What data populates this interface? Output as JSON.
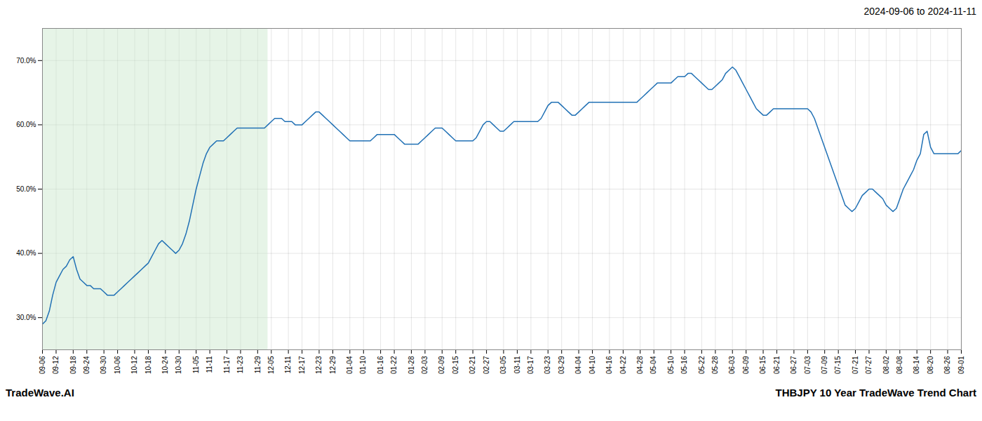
{
  "chart_data": {
    "type": "line",
    "title": "2024-09-06 to 2024-11-11",
    "footer": [
      "TradeWave.AI",
      "THBJPY 10 Year TradeWave Trend Chart"
    ],
    "color": "#2171b5",
    "grid": true,
    "ylim": [
      25.0,
      75.0
    ],
    "yticks": [
      {
        "value": 30.0,
        "label": "30.0%"
      },
      {
        "value": 40.0,
        "label": "40.0%"
      },
      {
        "value": 50.0,
        "label": "50.0%"
      },
      {
        "value": 60.0,
        "label": "60.0%"
      },
      {
        "value": 70.0,
        "label": "70.0%"
      }
    ],
    "spans": [
      {
        "start": 0,
        "end": 66,
        "color": "#c8e6c9"
      }
    ],
    "categories": [
      "09-06",
      null,
      null,
      null,
      "09-12",
      null,
      null,
      null,
      null,
      "09-18",
      null,
      null,
      null,
      "09-24",
      null,
      null,
      null,
      null,
      "09-30",
      null,
      null,
      null,
      "10-06",
      null,
      null,
      null,
      null,
      "10-12",
      null,
      null,
      null,
      "10-18",
      null,
      null,
      null,
      null,
      "10-24",
      null,
      null,
      null,
      "10-30",
      null,
      null,
      null,
      null,
      "11-05",
      null,
      null,
      null,
      "11-11",
      null,
      null,
      null,
      null,
      "11-17",
      null,
      null,
      null,
      "11-23",
      null,
      null,
      null,
      null,
      "11-29",
      null,
      null,
      null,
      "12-05",
      null,
      null,
      null,
      null,
      "12-11",
      null,
      null,
      null,
      "12-17",
      null,
      null,
      null,
      null,
      "12-23",
      null,
      null,
      null,
      "12-29",
      null,
      null,
      null,
      null,
      "01-04",
      null,
      null,
      null,
      "01-10",
      null,
      null,
      null,
      null,
      "01-16",
      null,
      null,
      null,
      "01-22",
      null,
      null,
      null,
      null,
      "01-28",
      null,
      null,
      null,
      "02-03",
      null,
      null,
      null,
      null,
      "02-09",
      null,
      null,
      null,
      "02-15",
      null,
      null,
      null,
      null,
      "02-21",
      null,
      null,
      null,
      "02-27",
      null,
      null,
      null,
      null,
      "03-05",
      null,
      null,
      null,
      "03-11",
      null,
      null,
      null,
      "03-17",
      null,
      null,
      null,
      null,
      "03-23",
      null,
      null,
      null,
      "03-29",
      null,
      null,
      null,
      null,
      "04-04",
      null,
      null,
      null,
      "04-10",
      null,
      null,
      null,
      null,
      "04-16",
      null,
      null,
      null,
      "04-22",
      null,
      null,
      null,
      null,
      "04-28",
      null,
      null,
      null,
      "05-04",
      null,
      null,
      null,
      null,
      "05-10",
      null,
      null,
      null,
      "05-16",
      null,
      null,
      null,
      null,
      "05-22",
      null,
      null,
      null,
      "05-28",
      null,
      null,
      null,
      null,
      "06-03",
      null,
      null,
      null,
      "06-09",
      null,
      null,
      null,
      null,
      "06-15",
      null,
      null,
      null,
      "06-21",
      null,
      null,
      null,
      null,
      "06-27",
      null,
      null,
      null,
      "07-03",
      null,
      null,
      null,
      null,
      "07-09",
      null,
      null,
      null,
      "07-15",
      null,
      null,
      null,
      null,
      "07-21",
      null,
      null,
      null,
      "07-27",
      null,
      null,
      null,
      null,
      "08-02",
      null,
      null,
      null,
      "08-08",
      null,
      null,
      null,
      null,
      "08-14",
      null,
      null,
      null,
      "08-20",
      null,
      null,
      null,
      null,
      "08-26",
      null,
      null,
      null,
      "09-01"
    ],
    "values": [
      29.0,
      29.5,
      31.0,
      33.5,
      35.5,
      36.5,
      37.5,
      38.0,
      39.0,
      39.5,
      37.5,
      36.0,
      35.5,
      35.0,
      35.0,
      34.5,
      34.5,
      34.5,
      34.0,
      33.5,
      33.5,
      33.5,
      34.0,
      34.5,
      35.0,
      35.5,
      36.0,
      36.5,
      37.0,
      37.5,
      38.0,
      38.5,
      39.5,
      40.5,
      41.5,
      42.0,
      41.5,
      41.0,
      40.5,
      40.0,
      40.5,
      41.5,
      43.0,
      45.0,
      47.5,
      50.0,
      52.0,
      54.0,
      55.5,
      56.5,
      57.0,
      57.5,
      57.5,
      57.5,
      58.0,
      58.5,
      59.0,
      59.5,
      59.5,
      59.5,
      59.5,
      59.5,
      59.5,
      59.5,
      59.5,
      59.5,
      60.0,
      60.5,
      61.0,
      61.0,
      61.0,
      60.5,
      60.5,
      60.5,
      60.0,
      60.0,
      60.0,
      60.5,
      61.0,
      61.5,
      62.0,
      62.0,
      61.5,
      61.0,
      60.5,
      60.0,
      59.5,
      59.0,
      58.5,
      58.0,
      57.5,
      57.5,
      57.5,
      57.5,
      57.5,
      57.5,
      57.5,
      58.0,
      58.5,
      58.5,
      58.5,
      58.5,
      58.5,
      58.5,
      58.0,
      57.5,
      57.0,
      57.0,
      57.0,
      57.0,
      57.0,
      57.5,
      58.0,
      58.5,
      59.0,
      59.5,
      59.5,
      59.5,
      59.0,
      58.5,
      58.0,
      57.5,
      57.5,
      57.5,
      57.5,
      57.5,
      57.5,
      58.0,
      59.0,
      60.0,
      60.5,
      60.5,
      60.0,
      59.5,
      59.0,
      59.0,
      59.5,
      60.0,
      60.5,
      60.5,
      60.5,
      60.5,
      60.5,
      60.5,
      60.5,
      60.5,
      61.0,
      62.0,
      63.0,
      63.5,
      63.5,
      63.5,
      63.0,
      62.5,
      62.0,
      61.5,
      61.5,
      62.0,
      62.5,
      63.0,
      63.5,
      63.5,
      63.5,
      63.5,
      63.5,
      63.5,
      63.5,
      63.5,
      63.5,
      63.5,
      63.5,
      63.5,
      63.5,
      63.5,
      63.5,
      64.0,
      64.5,
      65.0,
      65.5,
      66.0,
      66.5,
      66.5,
      66.5,
      66.5,
      66.5,
      67.0,
      67.5,
      67.5,
      67.5,
      68.0,
      68.0,
      67.5,
      67.0,
      66.5,
      66.0,
      65.5,
      65.5,
      66.0,
      66.5,
      67.0,
      68.0,
      68.5,
      69.0,
      68.5,
      67.5,
      66.5,
      65.5,
      64.5,
      63.5,
      62.5,
      62.0,
      61.5,
      61.5,
      62.0,
      62.5,
      62.5,
      62.5,
      62.5,
      62.5,
      62.5,
      62.5,
      62.5,
      62.5,
      62.5,
      62.5,
      62.0,
      61.0,
      59.5,
      58.0,
      56.5,
      55.0,
      53.5,
      52.0,
      50.5,
      49.0,
      47.5,
      47.0,
      46.5,
      47.0,
      48.0,
      49.0,
      49.5,
      50.0,
      50.0,
      49.5,
      49.0,
      48.5,
      47.5,
      47.0,
      46.5,
      47.0,
      48.5,
      50.0,
      51.0,
      52.0,
      53.0,
      54.5,
      55.5,
      58.5,
      59.0,
      56.5,
      55.5,
      55.5,
      55.5,
      55.5,
      55.5,
      55.5,
      55.5,
      55.5,
      56.0
    ]
  }
}
